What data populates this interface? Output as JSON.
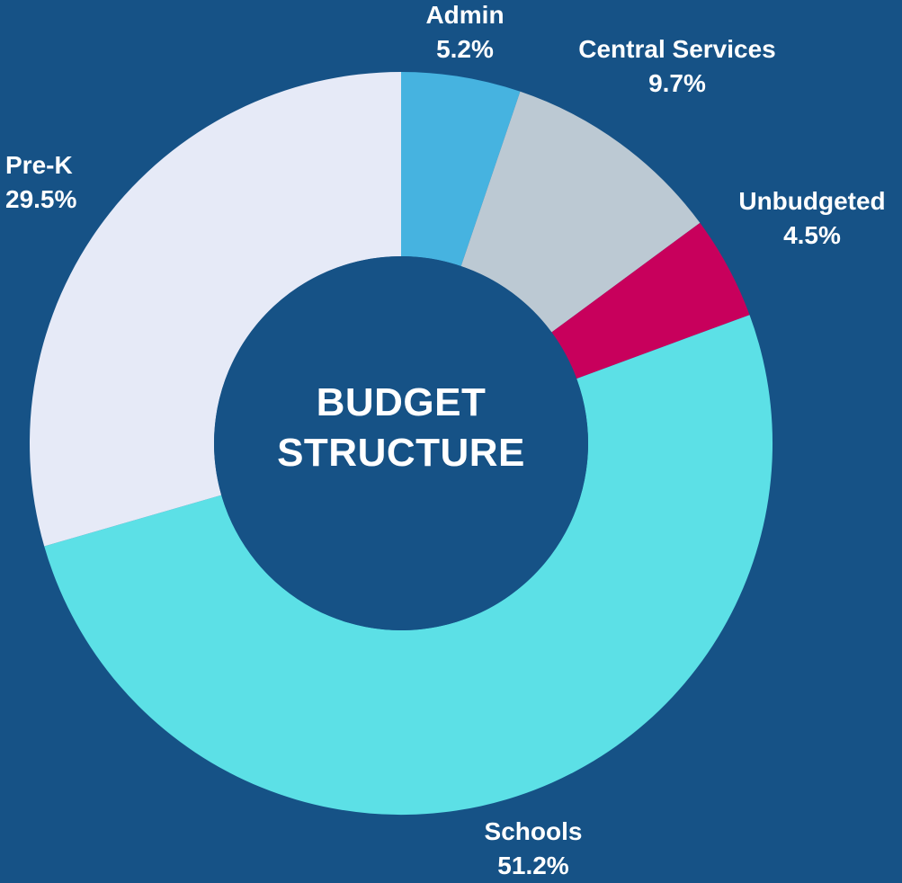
{
  "chart_data": {
    "type": "pie",
    "title": [
      "BUDGET",
      "STRUCTURE"
    ],
    "start_angle_deg": 0,
    "direction": "clockwise",
    "slices": [
      {
        "label": "Admin",
        "value": 5.2,
        "display": "5.2%",
        "color": "#46B3E0"
      },
      {
        "label": "Central Services",
        "value": 9.7,
        "display": "9.7%",
        "color": "#BCC9D3"
      },
      {
        "label": "Unbudgeted",
        "value": 4.5,
        "display": "4.5%",
        "color": "#C8005C"
      },
      {
        "label": "Schools",
        "value": 51.2,
        "display": "51.2%",
        "color": "#5CE0E6"
      },
      {
        "label": "Pre-K",
        "value": 29.5,
        "display": "29.5%",
        "color": "#E6EAF7"
      }
    ],
    "background_color": "#165286",
    "donut_hole_color": "#165286",
    "legend": "none"
  }
}
